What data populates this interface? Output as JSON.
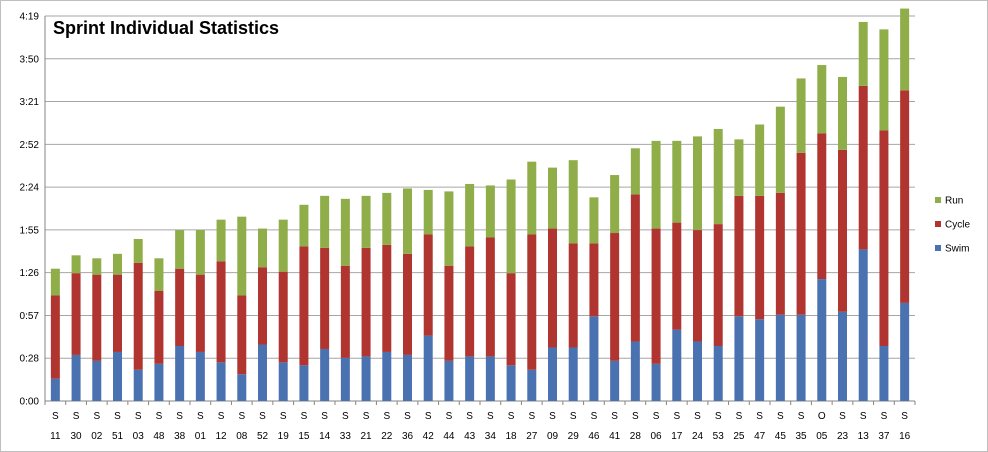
{
  "chart_data": {
    "type": "bar",
    "stacked": true,
    "title": "Sprint Individual Statistics",
    "xlabel": "",
    "ylabel": "",
    "y_tick_labels": [
      "0:00",
      "0:28",
      "0:57",
      "1:26",
      "1:55",
      "2:24",
      "2:52",
      "3:21",
      "3:50",
      "4:19"
    ],
    "y_range_seconds": [
      0,
      259
    ],
    "grid": true,
    "legend_position": "right",
    "categories": [
      [
        "S",
        "11"
      ],
      [
        "S",
        "30"
      ],
      [
        "S",
        "02"
      ],
      [
        "S",
        "51"
      ],
      [
        "S",
        "03"
      ],
      [
        "S",
        "48"
      ],
      [
        "S",
        "38"
      ],
      [
        "S",
        "01"
      ],
      [
        "S",
        "12"
      ],
      [
        "S",
        "08"
      ],
      [
        "S",
        "52"
      ],
      [
        "S",
        "19"
      ],
      [
        "S",
        "15"
      ],
      [
        "S",
        "14"
      ],
      [
        "S",
        "33"
      ],
      [
        "S",
        "21"
      ],
      [
        "S",
        "22"
      ],
      [
        "S",
        "36"
      ],
      [
        "S",
        "42"
      ],
      [
        "S",
        "44"
      ],
      [
        "S",
        "43"
      ],
      [
        "S",
        "34"
      ],
      [
        "S",
        "18"
      ],
      [
        "S",
        "27"
      ],
      [
        "S",
        "09"
      ],
      [
        "S",
        "29"
      ],
      [
        "S",
        "46"
      ],
      [
        "S",
        "41"
      ],
      [
        "S",
        "28"
      ],
      [
        "S",
        "06"
      ],
      [
        "S",
        "17"
      ],
      [
        "S",
        "24"
      ],
      [
        "S",
        "53"
      ],
      [
        "S",
        "25"
      ],
      [
        "S",
        "47"
      ],
      [
        "S",
        "45"
      ],
      [
        "S",
        "35"
      ],
      [
        "O",
        "05"
      ],
      [
        "S",
        "23"
      ],
      [
        "S",
        "13"
      ],
      [
        "S",
        "37"
      ],
      [
        "S",
        "16"
      ]
    ],
    "series": [
      {
        "name": "Swim",
        "color": "#4a72b0",
        "values": [
          15,
          31,
          27,
          33,
          21,
          25,
          37,
          33,
          26,
          18,
          38,
          26,
          24,
          35,
          29,
          30,
          33,
          31,
          44,
          27,
          30,
          30,
          24,
          21,
          36,
          36,
          57,
          27,
          40,
          25,
          48,
          40,
          37,
          57,
          55,
          58,
          58,
          82,
          60,
          102,
          37,
          66
        ]
      },
      {
        "name": "Cycle",
        "color": "#b03530",
        "values": [
          56,
          55,
          58,
          52,
          72,
          49,
          52,
          52,
          68,
          53,
          52,
          61,
          80,
          68,
          62,
          73,
          72,
          68,
          68,
          64,
          74,
          80,
          62,
          91,
          80,
          70,
          49,
          86,
          99,
          91,
          72,
          75,
          82,
          81,
          83,
          82,
          109,
          98,
          109,
          110,
          145,
          143
        ]
      },
      {
        "name": "Run",
        "color": "#8fad48",
        "values": [
          18,
          12,
          11,
          14,
          16,
          22,
          26,
          30,
          28,
          53,
          26,
          35,
          28,
          35,
          45,
          35,
          35,
          44,
          30,
          50,
          42,
          35,
          63,
          49,
          41,
          56,
          31,
          39,
          31,
          59,
          55,
          63,
          64,
          38,
          48,
          58,
          50,
          46,
          49,
          43,
          68,
          55
        ]
      }
    ]
  }
}
